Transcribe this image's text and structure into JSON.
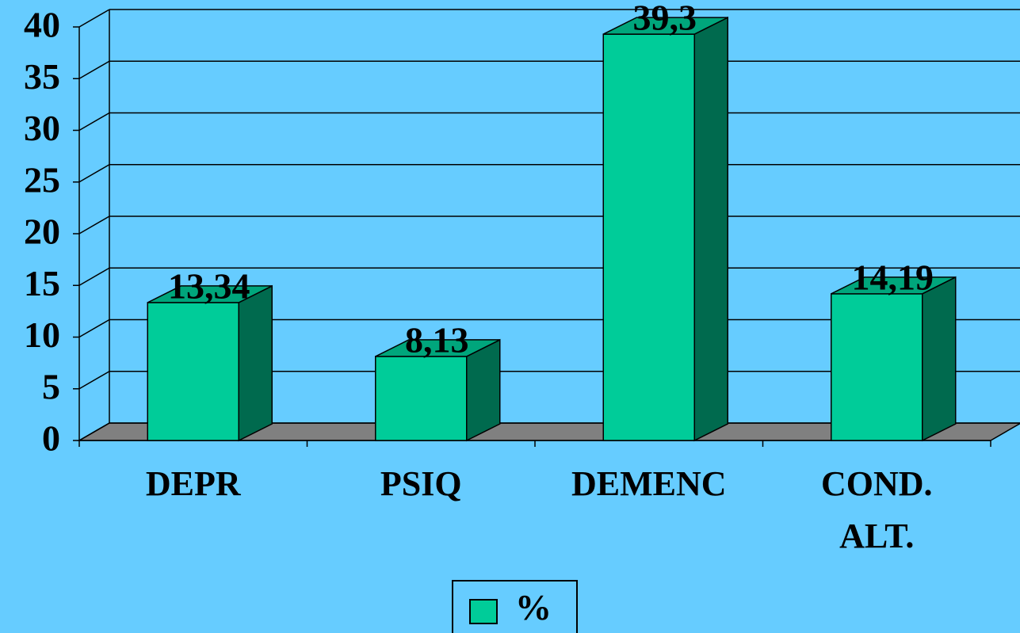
{
  "chart_data": {
    "type": "bar3d",
    "categories": [
      "DEPR",
      "PSIQ",
      "DEMENC",
      "COND. ALT."
    ],
    "series": [
      {
        "name": "%",
        "color": "#00cc99",
        "values": [
          13.34,
          8.13,
          39.3,
          14.19
        ],
        "value_labels": [
          "13,34",
          "8,13",
          "39,3",
          "14,19"
        ]
      }
    ],
    "ylim": [
      0,
      40
    ],
    "yticks": [
      0,
      5,
      10,
      15,
      20,
      25,
      30,
      35,
      40
    ],
    "grid": true,
    "legend": "bottom",
    "background": "#66ccff"
  }
}
